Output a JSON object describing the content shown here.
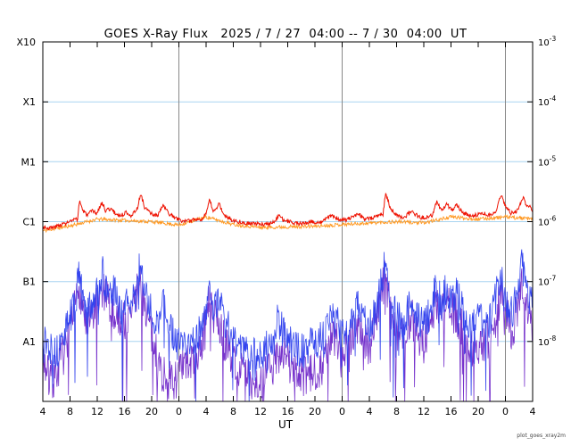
{
  "chart": {
    "title": "GOES X-Ray Flux   2025 / 7 / 27  04:00 -- 7 / 30  04:00  UT",
    "x_axis_label": "UT",
    "caption": "plot_goes_xray2m",
    "colors": {
      "background": "#ffffff",
      "frame": "#000000",
      "grid_decade": "#a8d4f0",
      "day_boundary": "#888888",
      "text": "#000000",
      "long_primary": "#ee1100",
      "long_secondary": "#ff9922",
      "short_primary": "#3344ee",
      "short_secondary": "#7733cc"
    }
  },
  "chart_data": {
    "type": "line",
    "title": "GOES X-Ray Flux   2025 / 7 / 27  04:00 -- 7 / 30  04:00  UT",
    "xlabel": "UT",
    "ylabel": "",
    "x_unit": "hours since 2025-07-27 04:00 UT",
    "x_range": [
      0,
      72
    ],
    "y_scale": "log",
    "y_range": [
      1e-09,
      0.001
    ],
    "grid": "decade-horizontal",
    "legend_position": "none",
    "step_hours": 0.08,
    "x_ticks_hours": [
      0,
      4,
      8,
      12,
      16,
      20,
      24,
      28,
      32,
      36,
      40,
      44,
      48,
      52,
      56,
      60,
      64,
      68,
      72
    ],
    "x_tick_labels": [
      "4",
      "8",
      "12",
      "16",
      "20",
      "0",
      "4",
      "8",
      "12",
      "16",
      "20",
      "0",
      "4",
      "8",
      "12",
      "16",
      "20",
      "0",
      "4"
    ],
    "y_class_labels": [
      "X10",
      "X1",
      "M1",
      "C1",
      "B1",
      "A1"
    ],
    "y_class_values": [
      0.001,
      0.0001,
      1e-05,
      1e-06,
      1e-07,
      1e-08
    ],
    "y_right_exponents": [
      -3,
      -4,
      -5,
      -6,
      -7,
      -8
    ],
    "grid_values": [
      0.0001,
      1e-05,
      1e-06,
      1e-07,
      1e-08
    ],
    "day_boundaries_hours": [
      20,
      44,
      68
    ],
    "series": [
      {
        "name": "xray-long-secondary",
        "color": "#ff9922",
        "width": 0.9,
        "noise_dex": 0.03,
        "dropout_prob": 0,
        "dropout_depth": 0,
        "seed": 11,
        "points": [
          [
            0,
            7e-07
          ],
          [
            4,
            8.5e-07
          ],
          [
            8,
            1.1e-06
          ],
          [
            12,
            1.05e-06
          ],
          [
            16,
            1e-06
          ],
          [
            20,
            8.8e-07
          ],
          [
            24,
            1.2e-06
          ],
          [
            28,
            9e-07
          ],
          [
            32,
            8e-07
          ],
          [
            36,
            8.2e-07
          ],
          [
            40,
            8.4e-07
          ],
          [
            44,
            9e-07
          ],
          [
            48,
            9.5e-07
          ],
          [
            52,
            1e-06
          ],
          [
            56,
            9.5e-07
          ],
          [
            60,
            1.2e-06
          ],
          [
            64,
            1.1e-06
          ],
          [
            68,
            1.2e-06
          ],
          [
            72,
            1.1e-06
          ]
        ]
      },
      {
        "name": "xray-short-secondary",
        "color": "#7733cc",
        "width": 0.8,
        "noise_dex": 0.35,
        "dropout_prob": 0.07,
        "dropout_depth": 1.6,
        "seed": 7,
        "points": [
          [
            0,
            6e-09
          ],
          [
            1,
            2e-09
          ],
          [
            2,
            3e-09
          ],
          [
            4,
            1.2e-08
          ],
          [
            5.3,
            9e-08
          ],
          [
            6.5,
            1.5e-08
          ],
          [
            8.8,
            7e-08
          ],
          [
            10.5,
            3e-08
          ],
          [
            12.5,
            2e-08
          ],
          [
            14.3,
            1e-07
          ],
          [
            16,
            1.2e-08
          ],
          [
            17.5,
            3e-09
          ],
          [
            19,
            2e-09
          ],
          [
            21,
            4e-09
          ],
          [
            23,
            6e-09
          ],
          [
            24.4,
            4e-08
          ],
          [
            26,
            1.5e-08
          ],
          [
            28,
            5e-09
          ],
          [
            30,
            2.5e-09
          ],
          [
            32,
            2e-09
          ],
          [
            34,
            4e-09
          ],
          [
            35,
            8e-09
          ],
          [
            37,
            3e-09
          ],
          [
            39,
            2.5e-09
          ],
          [
            41,
            4e-09
          ],
          [
            42.5,
            1.2e-08
          ],
          [
            44,
            7e-09
          ],
          [
            46.3,
            2e-08
          ],
          [
            48,
            8e-09
          ],
          [
            50.3,
            1.1e-07
          ],
          [
            52,
            1.2e-08
          ],
          [
            54.2,
            2.5e-08
          ],
          [
            56,
            9e-09
          ],
          [
            57.8,
            4e-08
          ],
          [
            59.3,
            4e-08
          ],
          [
            61,
            2.5e-08
          ],
          [
            63,
            8e-09
          ],
          [
            64.5,
            1e-08
          ],
          [
            66,
            1e-08
          ],
          [
            67.3,
            7e-08
          ],
          [
            69,
            1.4e-08
          ],
          [
            70.5,
            1e-07
          ],
          [
            72,
            2e-08
          ]
        ]
      },
      {
        "name": "xray-short-primary",
        "color": "#3344ee",
        "width": 0.8,
        "noise_dex": 0.3,
        "dropout_prob": 0.04,
        "dropout_depth": 1.4,
        "seed": 13,
        "points": [
          [
            0,
            1.2e-08
          ],
          [
            1,
            8e-09
          ],
          [
            2,
            6e-09
          ],
          [
            3,
            1.2e-08
          ],
          [
            4,
            2.5e-08
          ],
          [
            5,
            6e-08
          ],
          [
            5.3,
            1.8e-07
          ],
          [
            5.8,
            5e-08
          ],
          [
            6.5,
            3e-08
          ],
          [
            7.5,
            5e-08
          ],
          [
            8.8,
            1.4e-07
          ],
          [
            9.5,
            5e-08
          ],
          [
            10.5,
            7e-08
          ],
          [
            11.5,
            3.5e-08
          ],
          [
            12.5,
            4e-08
          ],
          [
            13.5,
            5e-08
          ],
          [
            14.3,
            2e-07
          ],
          [
            15,
            6e-08
          ],
          [
            16,
            3e-08
          ],
          [
            17,
            2e-08
          ],
          [
            17.8,
            6e-08
          ],
          [
            18.5,
            2e-08
          ],
          [
            19.5,
            1e-08
          ],
          [
            20.5,
            8e-09
          ],
          [
            21.5,
            1e-08
          ],
          [
            22.5,
            1.2e-08
          ],
          [
            23.5,
            1.5e-08
          ],
          [
            24.4,
            8e-08
          ],
          [
            25.2,
            3e-08
          ],
          [
            25.8,
            6e-08
          ],
          [
            26.8,
            2e-08
          ],
          [
            28,
            1.2e-08
          ],
          [
            29.5,
            8e-09
          ],
          [
            31,
            6e-09
          ],
          [
            32.5,
            7e-09
          ],
          [
            34,
            1e-08
          ],
          [
            34.6,
            3e-08
          ],
          [
            35.5,
            1.2e-08
          ],
          [
            37,
            8e-09
          ],
          [
            38.5,
            7e-09
          ],
          [
            40,
            1e-08
          ],
          [
            41.5,
            1.2e-08
          ],
          [
            42.5,
            3e-08
          ],
          [
            43.5,
            2e-08
          ],
          [
            44.5,
            1.5e-08
          ],
          [
            45.5,
            2.5e-08
          ],
          [
            46.3,
            5e-08
          ],
          [
            47.2,
            2e-08
          ],
          [
            48.2,
            2e-08
          ],
          [
            49,
            3e-08
          ],
          [
            50.3,
            2.2e-07
          ],
          [
            51,
            5e-08
          ],
          [
            52,
            2.5e-08
          ],
          [
            53,
            2e-08
          ],
          [
            54.2,
            5e-08
          ],
          [
            55,
            2.5e-08
          ],
          [
            56,
            2e-08
          ],
          [
            57,
            3e-08
          ],
          [
            57.8,
            9e-08
          ],
          [
            58.6,
            4e-08
          ],
          [
            59.3,
            8e-08
          ],
          [
            60.1,
            4e-08
          ],
          [
            60.8,
            7e-08
          ],
          [
            61.8,
            3e-08
          ],
          [
            63,
            2e-08
          ],
          [
            64,
            2.5e-08
          ],
          [
            65,
            2e-08
          ],
          [
            66,
            2.5e-08
          ],
          [
            67.3,
            1.5e-07
          ],
          [
            68,
            4e-08
          ],
          [
            69,
            3e-08
          ],
          [
            70.5,
            2e-07
          ],
          [
            71.2,
            6e-08
          ],
          [
            72,
            4e-08
          ]
        ]
      },
      {
        "name": "xray-long-primary",
        "color": "#ee1100",
        "width": 1.0,
        "noise_dex": 0.035,
        "dropout_prob": 0,
        "dropout_depth": 0,
        "seed": 3,
        "points": [
          [
            0,
            8.2e-07
          ],
          [
            0.8,
            7.8e-07
          ],
          [
            1.6,
            8e-07
          ],
          [
            2.5,
            8.8e-07
          ],
          [
            3.5,
            9.5e-07
          ],
          [
            4.5,
            1.05e-06
          ],
          [
            5.1,
            1.1e-06
          ],
          [
            5.4,
            2.3e-06
          ],
          [
            5.9,
            1.5e-06
          ],
          [
            6.6,
            1.3e-06
          ],
          [
            7.3,
            1.5e-06
          ],
          [
            7.9,
            1.35e-06
          ],
          [
            8.7,
            2.1e-06
          ],
          [
            9.2,
            1.55e-06
          ],
          [
            10.0,
            1.65e-06
          ],
          [
            10.7,
            1.35e-06
          ],
          [
            11.5,
            1.25e-06
          ],
          [
            12.3,
            1.45e-06
          ],
          [
            13.1,
            1.25e-06
          ],
          [
            13.9,
            1.7e-06
          ],
          [
            14.4,
            2.9e-06
          ],
          [
            15.0,
            1.7e-06
          ],
          [
            15.9,
            1.35e-06
          ],
          [
            16.9,
            1.25e-06
          ],
          [
            17.7,
            1.9e-06
          ],
          [
            18.4,
            1.4e-06
          ],
          [
            19.2,
            1.2e-06
          ],
          [
            20.2,
            1.05e-06
          ],
          [
            21.2,
            1e-06
          ],
          [
            22.3,
            1.1e-06
          ],
          [
            23.3,
            1.1e-06
          ],
          [
            24.1,
            1.4e-06
          ],
          [
            24.5,
            2.3e-06
          ],
          [
            25.1,
            1.45e-06
          ],
          [
            25.9,
            2e-06
          ],
          [
            26.6,
            1.3e-06
          ],
          [
            27.6,
            1.1e-06
          ],
          [
            28.8,
            1e-06
          ],
          [
            30.5,
            9.4e-07
          ],
          [
            32.0,
            9e-07
          ],
          [
            33.8,
            9.4e-07
          ],
          [
            34.7,
            1.3e-06
          ],
          [
            35.4,
            1.05e-06
          ],
          [
            36.8,
            9.6e-07
          ],
          [
            38.2,
            9.2e-07
          ],
          [
            39.6,
            1e-06
          ],
          [
            41.0,
            9.6e-07
          ],
          [
            42.4,
            1.3e-06
          ],
          [
            43.4,
            1.1e-06
          ],
          [
            44.6,
            1.05e-06
          ],
          [
            45.6,
            1.2e-06
          ],
          [
            46.4,
            1.4e-06
          ],
          [
            47.2,
            1.1e-06
          ],
          [
            48.2,
            1.15e-06
          ],
          [
            49.2,
            1.25e-06
          ],
          [
            50.0,
            1.35e-06
          ],
          [
            50.4,
            3.1e-06
          ],
          [
            51.0,
            1.75e-06
          ],
          [
            51.9,
            1.3e-06
          ],
          [
            53.0,
            1.15e-06
          ],
          [
            54.3,
            1.5e-06
          ],
          [
            55.2,
            1.2e-06
          ],
          [
            56.2,
            1.15e-06
          ],
          [
            57.2,
            1.25e-06
          ],
          [
            57.9,
            2.2e-06
          ],
          [
            58.6,
            1.5e-06
          ],
          [
            59.4,
            2e-06
          ],
          [
            60.1,
            1.5e-06
          ],
          [
            60.9,
            1.9e-06
          ],
          [
            61.7,
            1.4e-06
          ],
          [
            62.7,
            1.25e-06
          ],
          [
            63.7,
            1.3e-06
          ],
          [
            64.7,
            1.4e-06
          ],
          [
            65.7,
            1.3e-06
          ],
          [
            66.6,
            1.5e-06
          ],
          [
            67.4,
            2.9e-06
          ],
          [
            68.0,
            1.8e-06
          ],
          [
            68.8,
            1.4e-06
          ],
          [
            69.7,
            1.5e-06
          ],
          [
            70.6,
            2.6e-06
          ],
          [
            71.1,
            1.7e-06
          ],
          [
            71.7,
            1.9e-06
          ],
          [
            72,
            1.35e-06
          ]
        ]
      }
    ]
  }
}
